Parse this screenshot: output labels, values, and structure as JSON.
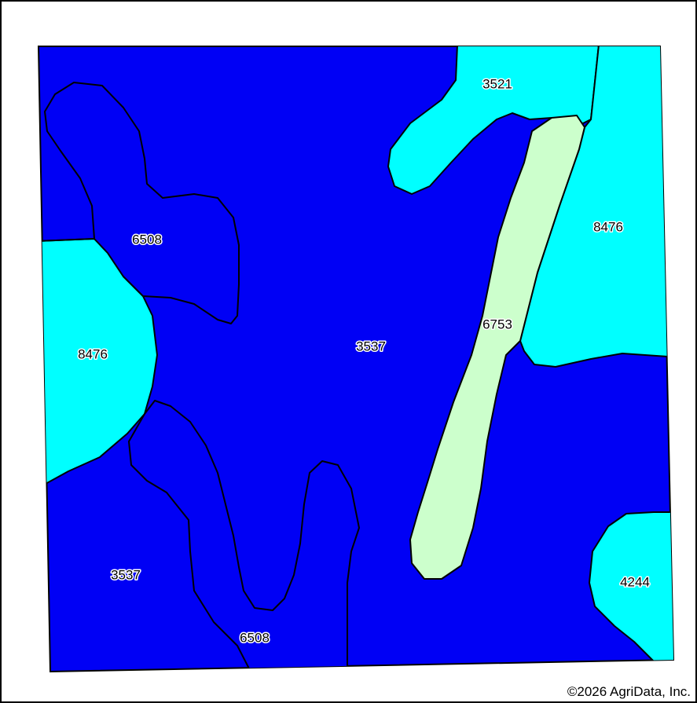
{
  "map": {
    "colors": {
      "soil_3537": "#0000F5",
      "soil_6508": "#0000F5",
      "soil_8476": "#00FFFF",
      "soil_3521": "#00FFFF",
      "soil_4244": "#00FFFF",
      "soil_6753": "#CCFFCC",
      "boundary": "#000000"
    },
    "labels": {
      "top_right_cyan": "3521",
      "right_cyan": "8476",
      "left_cyan": "8476",
      "upper_left_blue": "6508",
      "center_blue": "3537",
      "green_strip": "6753",
      "lower_left_blue": "3537",
      "bottom_blue": "6508",
      "bottom_right_cyan": "4244"
    }
  },
  "footer": {
    "copyright": "©2026 AgriData, Inc."
  }
}
